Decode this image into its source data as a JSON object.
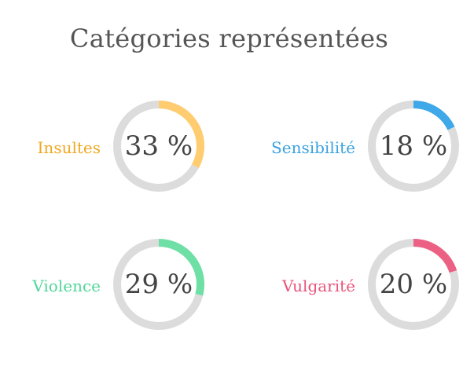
{
  "title": "Catégories représentées",
  "colors": {
    "track": "#dcdcdc",
    "value_text": "#444444",
    "title_text": "#555555"
  },
  "chart_data": {
    "type": "donut-gauges",
    "title": "Catégories représentées",
    "items": [
      {
        "label": "Insultes",
        "value": 33,
        "display": "33 %",
        "color": "#ffcc70",
        "label_color": "#f0a820"
      },
      {
        "label": "Sensibilité",
        "value": 18,
        "display": "18 %",
        "color": "#3ea8e8",
        "label_color": "#3aa2e0"
      },
      {
        "label": "Violence",
        "value": 29,
        "display": "29 %",
        "color": "#6ee0a6",
        "label_color": "#50d69a"
      },
      {
        "label": "Vulgarité",
        "value": 20,
        "display": "20 %",
        "color": "#ec6083",
        "label_color": "#e8557a"
      }
    ]
  }
}
